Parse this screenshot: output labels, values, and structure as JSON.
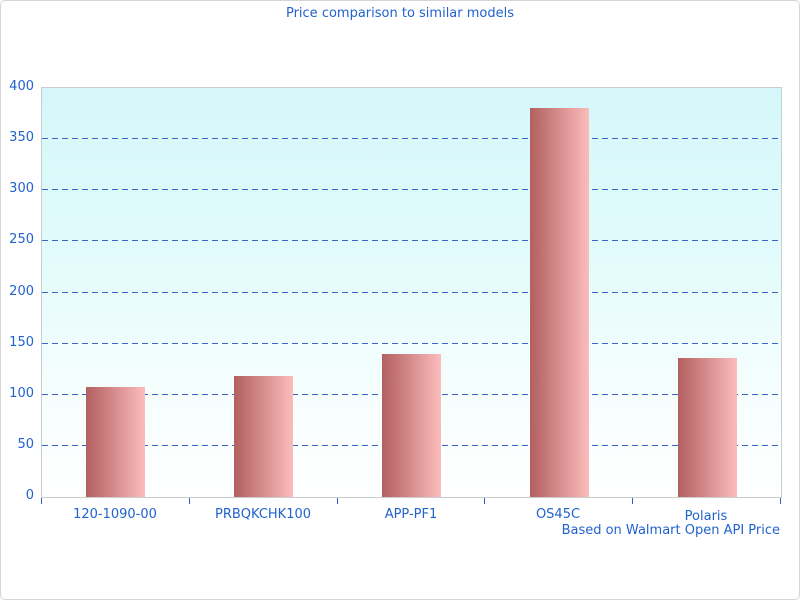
{
  "window": {
    "background": "#ffffff",
    "border_color": "#d6d6d6"
  },
  "chart_data": {
    "type": "bar",
    "title": "Price comparison to similar models",
    "categories": [
      "120-1090-00",
      "PRBQKCHK100",
      "APP-PF1",
      "OS45C",
      "Polaris"
    ],
    "values": [
      108,
      118,
      140,
      380,
      136
    ],
    "xlabel": "",
    "ylabel": "",
    "ylim": [
      0,
      400
    ],
    "ytick_step": 50,
    "grid": "horizontal-dashed",
    "legend": "none",
    "annotation": "Based on Walmart Open API Price",
    "colors": {
      "text": "#2262cf",
      "gridline": "#3c64c8",
      "tick": "#2e62c9",
      "bar_gradient_left": "#b25f5f",
      "bar_gradient_right": "#fcbcbc",
      "plot_bg_top": "#d5f7f9",
      "plot_bg_bottom": "#ffffff",
      "plot_border": "#c9cdd0"
    }
  }
}
